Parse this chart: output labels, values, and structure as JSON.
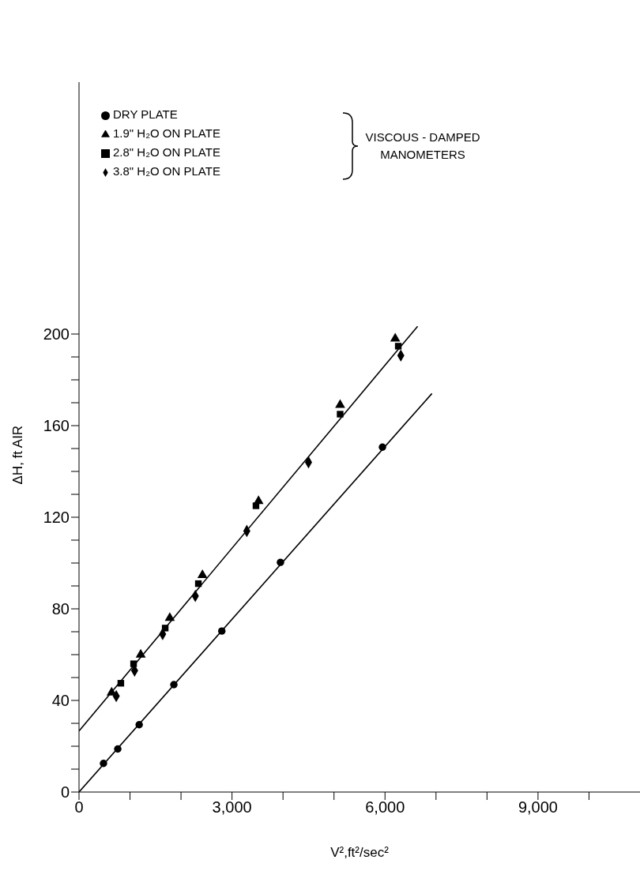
{
  "chart_data": {
    "type": "scatter",
    "xlabel": "V²,ft²/sec²",
    "ylabel": "ΔH, ft AIR",
    "xlim": [
      0,
      11000
    ],
    "ylim": [
      0,
      310
    ],
    "xticks": [
      0,
      {
        "value": 1000,
        "label": null
      },
      {
        "value": 2000,
        "label": null
      },
      {
        "value": 3000,
        "label": "3,000"
      },
      {
        "value": 4000,
        "label": null
      },
      {
        "value": 5000,
        "label": null
      },
      {
        "value": 6000,
        "label": "6,000"
      },
      {
        "value": 7000,
        "label": null
      },
      {
        "value": 8000,
        "label": null
      },
      {
        "value": 9000,
        "label": "9,000"
      },
      {
        "value": 10000,
        "label": null
      }
    ],
    "yticks": [
      0,
      {
        "value": 10,
        "label": null
      },
      {
        "value": 20,
        "label": null
      },
      {
        "value": 30,
        "label": null
      },
      40,
      {
        "value": 50,
        "label": null
      },
      {
        "value": 60,
        "label": null
      },
      {
        "value": 70,
        "label": null
      },
      80,
      {
        "value": 90,
        "label": null
      },
      {
        "value": 100,
        "label": null
      },
      {
        "value": 110,
        "label": null
      },
      120,
      {
        "value": 130,
        "label": null
      },
      {
        "value": 140,
        "label": null
      },
      {
        "value": 150,
        "label": null
      },
      160,
      {
        "value": 170,
        "label": null
      },
      {
        "value": 180,
        "label": null
      },
      {
        "value": 190,
        "label": null
      },
      200
    ],
    "grid": false,
    "legend": "top left",
    "annotations": [
      "VISCOUS - DAMPED MANOMETERS"
    ],
    "series": [
      {
        "name": "DRY PLATE",
        "color": "#000000",
        "marker": "circle",
        "x": [
          480,
          760,
          1180,
          1860,
          2800,
          3950,
          5950
        ],
        "values": [
          12.5,
          18.8,
          29.4,
          46.9,
          70.3,
          100.3,
          150.6
        ]
      },
      {
        "name": "1.9\" H₂O ON PLATE",
        "color": "#000000",
        "marker": "triangle",
        "x": [
          640,
          1210,
          1780,
          2420,
          3520,
          5120,
          6200
        ],
        "values": [
          43.4,
          60,
          76,
          94.7,
          127,
          169,
          198
        ]
      },
      {
        "name": "2.8\" H₂O ON PLATE",
        "color": "#000000",
        "marker": "square",
        "x": [
          820,
          1070,
          1690,
          2340,
          3470,
          5120,
          6260
        ],
        "values": [
          47.5,
          56,
          71.6,
          91,
          125,
          165,
          194.7
        ]
      },
      {
        "name": "3.8\" H₂O ON PLATE",
        "color": "#000000",
        "marker": "diamond",
        "x": [
          730,
          1090,
          1640,
          2280,
          3290,
          4500,
          6310
        ],
        "values": [
          41.9,
          53,
          69,
          85.6,
          114,
          144,
          190.6
        ]
      },
      {
        "type": "line",
        "color": "#000000",
        "marker": "none",
        "line_style": "solid",
        "x": [
          0,
          6640
        ],
        "values": [
          26.6,
          203.4
        ]
      },
      {
        "type": "line",
        "color": "#000000",
        "marker": "none",
        "line_style": "solid",
        "x": [
          0,
          6920
        ],
        "values": [
          0,
          174
        ]
      }
    ]
  }
}
